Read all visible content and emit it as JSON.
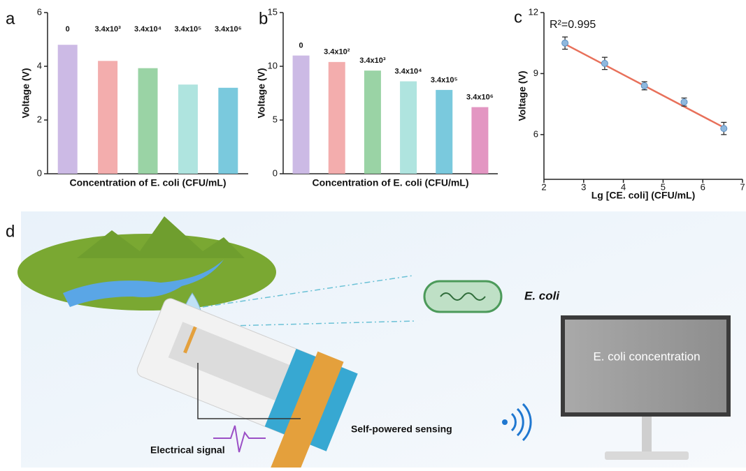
{
  "panel_labels": [
    "a",
    "b",
    "c",
    "d"
  ],
  "chart_data": [
    {
      "type": "bar",
      "categories": [
        "0",
        "3.4x10³",
        "3.4x10⁴",
        "3.4x10⁵",
        "3.4x10⁶"
      ],
      "values": [
        4.8,
        4.2,
        3.93,
        3.32,
        3.2
      ],
      "colors": [
        "#c7b2e2",
        "#f2a4a4",
        "#8fce9b",
        "#a6e1dc",
        "#6cc3d9"
      ],
      "xlabel": "Concentration of E. coli (CFU/mL)",
      "ylabel": "Voltage (V)",
      "ylim": [
        0,
        6
      ],
      "yticks": [
        0,
        2,
        4,
        6
      ]
    },
    {
      "type": "bar",
      "categories": [
        "0",
        "3.4x10²",
        "3.4x10³",
        "3.4x10⁴",
        "3.4x10⁵",
        "3.4x10⁶"
      ],
      "values": [
        11.0,
        10.4,
        9.6,
        8.6,
        7.8,
        6.2
      ],
      "colors": [
        "#c7b2e2",
        "#f2a4a4",
        "#8fce9b",
        "#a6e1dc",
        "#6cc3d9",
        "#e08bbb"
      ],
      "xlabel": "Concentration of E. coli (CFU/mL)",
      "ylabel": "Voltage (V)",
      "ylim": [
        0,
        15
      ],
      "yticks": [
        0,
        5,
        10,
        15
      ]
    },
    {
      "type": "scatter",
      "x": [
        2.53,
        3.53,
        4.53,
        5.53,
        6.53
      ],
      "y": [
        10.5,
        9.5,
        8.4,
        7.6,
        6.3
      ],
      "errors": [
        0.3,
        0.3,
        0.2,
        0.2,
        0.3
      ],
      "color": "#8fb8de",
      "fit": {
        "x": [
          2.53,
          6.53
        ],
        "y": [
          10.45,
          6.35
        ],
        "color": "#e8705a"
      },
      "annotation": "R²=0.995",
      "xlabel": "Lg [CE. coli] (CFU/mL)",
      "ylabel": "Voltage (V)",
      "xlim": [
        2,
        7
      ],
      "xticks": [
        2,
        3,
        4,
        5,
        6,
        7
      ],
      "ylim": [
        3.8,
        12
      ],
      "yticks": [
        6,
        9,
        12
      ]
    }
  ],
  "diagram": {
    "bacteria_label": "E. coli",
    "monitor_text": "E. coli concentration",
    "sensing_label": "Self-powered sensing",
    "signal_label": "Electrical signal"
  }
}
